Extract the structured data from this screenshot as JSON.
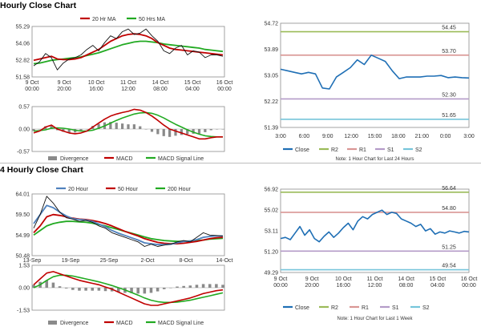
{
  "titles": {
    "hourly": "Hourly Close Chart",
    "four_hourly": "4 Hourly Close Chart"
  },
  "colors": {
    "price": "#111111",
    "ma_short": "#c00000",
    "ma_long": "#22aa22",
    "ma_20h": "#4f81bd",
    "ma_200h": "#22aa22",
    "divergence": "#8a8a8a",
    "macd": "#c00000",
    "macd_signal": "#22aa22",
    "close_line": "#1f6fb5",
    "r2": "#9bbb59",
    "r1": "#d99694",
    "s1": "#b49bc8",
    "s2": "#76c5da",
    "grid": "#d9d9d9"
  },
  "chart_data": [
    {
      "id": "hourly-price",
      "type": "line",
      "title": "",
      "series": [
        {
          "name": "20 Hr MA",
          "role": "ma_short"
        },
        {
          "name": "50 Hrs MA",
          "role": "ma_long"
        },
        {
          "name": "",
          "role": "price"
        }
      ],
      "y_ticks": [
        "55.29",
        "54.06",
        "52.82",
        "51.58"
      ],
      "ylim": [
        51.58,
        55.29
      ],
      "x_ticks": [
        [
          "9 Oct",
          "00:00"
        ],
        [
          "9 Oct",
          "20:00"
        ],
        [
          "10 Oct",
          "16:00"
        ],
        [
          "11 Oct",
          "12:00"
        ],
        [
          "14 Oct",
          "08:00"
        ],
        [
          "15 Oct",
          "04:00"
        ],
        [
          "16 Oct",
          "00:00"
        ]
      ],
      "price": [
        52.4,
        52.7,
        53.3,
        53.0,
        52.1,
        52.6,
        52.9,
        53.0,
        53.2,
        53.6,
        53.9,
        53.5,
        54.1,
        54.6,
        54.4,
        54.9,
        55.1,
        54.7,
        54.8,
        55.1,
        54.6,
        54.2,
        53.5,
        53.3,
        53.7,
        53.9,
        53.2,
        53.5,
        53.4,
        53.0,
        53.2,
        53.2,
        53.1
      ],
      "ma_short": [
        52.8,
        52.9,
        53.0,
        53.1,
        52.9,
        52.85,
        52.85,
        52.9,
        53.0,
        53.2,
        53.4,
        53.6,
        53.9,
        54.2,
        54.4,
        54.6,
        54.7,
        54.75,
        54.7,
        54.6,
        54.4,
        54.1,
        53.9,
        53.7,
        53.6,
        53.55,
        53.5,
        53.45,
        53.4,
        53.35,
        53.3,
        53.25,
        53.2
      ],
      "ma_long": [
        52.55,
        52.6,
        52.7,
        52.8,
        52.85,
        52.9,
        52.95,
        53.0,
        53.05,
        53.15,
        53.25,
        53.35,
        53.5,
        53.65,
        53.8,
        53.95,
        54.05,
        54.15,
        54.2,
        54.2,
        54.15,
        54.1,
        54.0,
        53.95,
        53.9,
        53.85,
        53.8,
        53.75,
        53.7,
        53.6,
        53.55,
        53.5,
        53.45
      ]
    },
    {
      "id": "hourly-macd",
      "type": "line",
      "title": "",
      "series": [
        {
          "name": "Divergence",
          "role": "divergence"
        },
        {
          "name": "MACD",
          "role": "macd"
        },
        {
          "name": "MACD Signal Line",
          "role": "signal"
        }
      ],
      "y_ticks": [
        "0.57",
        "0.00",
        "-0.57"
      ],
      "ylim": [
        -0.57,
        0.57
      ],
      "macd": [
        -0.1,
        -0.05,
        0.05,
        0.1,
        0.0,
        -0.05,
        -0.1,
        -0.12,
        -0.1,
        -0.05,
        0.05,
        0.15,
        0.25,
        0.33,
        0.38,
        0.42,
        0.45,
        0.5,
        0.48,
        0.42,
        0.33,
        0.22,
        0.1,
        0.0,
        -0.05,
        -0.1,
        -0.15,
        -0.2,
        -0.25,
        -0.25,
        -0.22,
        -0.2,
        -0.2
      ],
      "signal": [
        -0.05,
        -0.04,
        -0.02,
        0.02,
        0.03,
        0.02,
        0.0,
        -0.03,
        -0.05,
        -0.05,
        -0.03,
        0.02,
        0.08,
        0.15,
        0.22,
        0.28,
        0.33,
        0.38,
        0.41,
        0.42,
        0.4,
        0.35,
        0.28,
        0.2,
        0.12,
        0.05,
        -0.02,
        -0.08,
        -0.13,
        -0.17,
        -0.19,
        -0.2,
        -0.2
      ],
      "divergence": [
        -0.05,
        -0.01,
        0.07,
        0.08,
        -0.03,
        -0.07,
        -0.1,
        -0.09,
        -0.05,
        0.0,
        0.08,
        0.13,
        0.17,
        0.18,
        0.16,
        0.14,
        0.12,
        0.12,
        0.07,
        0.0,
        -0.07,
        -0.13,
        -0.18,
        -0.2,
        -0.17,
        -0.15,
        -0.13,
        -0.12,
        -0.12,
        -0.08,
        -0.03,
        0.0,
        0.0
      ]
    },
    {
      "id": "hourly-close",
      "type": "line",
      "title": "",
      "series": [
        {
          "name": "Close",
          "role": "close"
        },
        {
          "name": "R2",
          "role": "r2"
        },
        {
          "name": "R1",
          "role": "r1"
        },
        {
          "name": "S1",
          "role": "s1"
        },
        {
          "name": "S2",
          "role": "s2"
        }
      ],
      "y_ticks": [
        "54.72",
        "53.89",
        "53.05",
        "52.22",
        "51.39"
      ],
      "ylim": [
        51.39,
        54.72
      ],
      "x_ticks": [
        "3:00",
        "6:00",
        "9:00",
        "12:00",
        "15:00",
        "18:00",
        "21:00",
        "0:00",
        "3:00"
      ],
      "levels": {
        "r2": 54.45,
        "r1": 53.7,
        "s1": 52.3,
        "s2": 51.65
      },
      "level_labels": {
        "r2": "54.45",
        "r1": "53.70",
        "s1": "52.30",
        "s2": "51.65"
      },
      "close": [
        53.25,
        53.2,
        53.15,
        53.1,
        53.15,
        53.1,
        52.65,
        52.62,
        53.0,
        53.15,
        53.3,
        53.55,
        53.4,
        53.7,
        53.6,
        53.5,
        53.2,
        52.95,
        53.0,
        53.0,
        53.0,
        53.03,
        53.03,
        53.05,
        52.98,
        53.0,
        52.98,
        52.97
      ],
      "note": "Note: 1 Hour Chart for Last 24 Hours"
    },
    {
      "id": "four-hourly-price",
      "type": "line",
      "title": "",
      "series": [
        {
          "name": "20 Hour",
          "role": "ma_20h"
        },
        {
          "name": "50 Hour",
          "role": "ma_50h"
        },
        {
          "name": "200 Hour",
          "role": "ma_200h"
        },
        {
          "name": "",
          "role": "price"
        }
      ],
      "y_ticks": [
        "64.01",
        "59.50",
        "54.99",
        "50.48"
      ],
      "ylim": [
        50.48,
        64.01
      ],
      "x_ticks": [
        "13-Sep",
        "19-Sep",
        "25-Sep",
        "2-Oct",
        "8-Oct",
        "14-Oct"
      ],
      "price": [
        56.5,
        59.5,
        63.5,
        62.0,
        60.0,
        58.8,
        58.5,
        58.0,
        58.2,
        57.8,
        57.0,
        56.5,
        55.5,
        55.0,
        54.5,
        54.0,
        53.5,
        52.5,
        53.0,
        52.5,
        52.8,
        53.0,
        53.5,
        53.8,
        53.5,
        54.5,
        55.5,
        55.0,
        54.9,
        54.8
      ],
      "ma_20h": [
        57.5,
        59.5,
        61.5,
        61.0,
        60.0,
        59.2,
        58.6,
        58.4,
        58.3,
        58.0,
        57.4,
        56.8,
        56.0,
        55.4,
        54.9,
        54.4,
        53.9,
        53.3,
        53.1,
        52.9,
        52.9,
        53.0,
        53.3,
        53.6,
        53.7,
        54.0,
        54.5,
        54.7,
        54.8,
        54.8
      ],
      "ma_50h": [
        55.5,
        57.0,
        59.0,
        59.5,
        59.3,
        59.0,
        58.7,
        58.5,
        58.4,
        58.2,
        57.9,
        57.5,
        57.0,
        56.4,
        55.8,
        55.3,
        54.8,
        54.2,
        53.8,
        53.4,
        53.2,
        53.1,
        53.1,
        53.2,
        53.4,
        53.6,
        53.9,
        54.2,
        54.4,
        54.5
      ],
      "ma_200h": [
        55.0,
        56.0,
        57.0,
        57.5,
        57.8,
        58.0,
        58.0,
        57.9,
        57.8,
        57.6,
        57.3,
        57.0,
        56.6,
        56.2,
        55.8,
        55.4,
        55.0,
        54.6,
        54.2,
        54.0,
        53.8,
        53.7,
        53.6,
        53.6,
        53.7,
        53.8,
        53.9,
        54.1,
        54.2,
        54.3
      ]
    },
    {
      "id": "four-hourly-macd",
      "type": "line",
      "title": "",
      "series": [
        {
          "name": "Divergence",
          "role": "divergence"
        },
        {
          "name": "MACD",
          "role": "macd"
        },
        {
          "name": "MACD Signal Line",
          "role": "signal"
        }
      ],
      "y_ticks": [
        "1.53",
        "0.00",
        "-1.53"
      ],
      "ylim": [
        -1.53,
        1.53
      ],
      "macd": [
        0.2,
        0.6,
        1.0,
        1.1,
        0.95,
        0.8,
        0.65,
        0.5,
        0.4,
        0.3,
        0.2,
        0.05,
        -0.1,
        -0.3,
        -0.5,
        -0.7,
        -0.9,
        -1.1,
        -1.2,
        -1.2,
        -1.1,
        -1.0,
        -0.9,
        -0.8,
        -0.7,
        -0.55,
        -0.4,
        -0.3,
        -0.2,
        -0.15
      ],
      "signal": [
        0.0,
        0.2,
        0.5,
        0.75,
        0.85,
        0.85,
        0.8,
        0.7,
        0.6,
        0.5,
        0.4,
        0.28,
        0.15,
        0.0,
        -0.15,
        -0.33,
        -0.5,
        -0.7,
        -0.85,
        -0.95,
        -1.0,
        -1.0,
        -0.98,
        -0.92,
        -0.85,
        -0.75,
        -0.65,
        -0.55,
        -0.45,
        -0.35
      ],
      "divergence": [
        0.2,
        0.4,
        0.5,
        0.35,
        0.1,
        -0.05,
        -0.15,
        -0.2,
        -0.2,
        -0.2,
        -0.2,
        -0.23,
        -0.25,
        -0.3,
        -0.35,
        -0.37,
        -0.4,
        -0.4,
        -0.35,
        -0.25,
        -0.1,
        0.0,
        0.08,
        0.12,
        0.15,
        0.2,
        0.25,
        0.25,
        0.25,
        0.2
      ]
    },
    {
      "id": "four-hourly-close",
      "type": "line",
      "title": "",
      "series": [
        {
          "name": "Close",
          "role": "close"
        },
        {
          "name": "R2",
          "role": "r2"
        },
        {
          "name": "R1",
          "role": "r1"
        },
        {
          "name": "S1",
          "role": "s1"
        },
        {
          "name": "S2",
          "role": "s2"
        }
      ],
      "y_ticks": [
        "56.92",
        "55.02",
        "53.11",
        "51.20",
        "49.29"
      ],
      "ylim": [
        49.29,
        56.92
      ],
      "x_ticks": [
        [
          "9 Oct",
          "00:00"
        ],
        [
          "9 Oct",
          "20:00"
        ],
        [
          "10 Oct",
          "16:00"
        ],
        [
          "11 Oct",
          "12:00"
        ],
        [
          "14 Oct",
          "08:00"
        ],
        [
          "15 Oct",
          "04:00"
        ],
        [
          "16 Oct",
          "00:00"
        ]
      ],
      "levels": {
        "r2": 56.64,
        "r1": 54.8,
        "s1": 51.25,
        "s2": 49.54
      },
      "level_labels": {
        "r2": "56.64",
        "r1": "54.80",
        "s1": "51.25",
        "s2": "49.54"
      },
      "close": [
        52.4,
        52.5,
        52.3,
        52.9,
        53.5,
        52.7,
        53.2,
        52.4,
        52.1,
        52.6,
        53.0,
        52.5,
        52.9,
        53.4,
        53.8,
        53.2,
        54.0,
        54.4,
        54.2,
        54.6,
        54.8,
        55.0,
        54.6,
        54.8,
        54.7,
        54.2,
        54.0,
        53.8,
        53.5,
        53.7,
        53.1,
        53.3,
        52.8,
        53.0,
        52.9,
        53.1,
        53.0,
        52.9,
        53.05,
        53.0
      ],
      "note": "Note: 1 Hour Chart for Last 1 Week"
    }
  ]
}
